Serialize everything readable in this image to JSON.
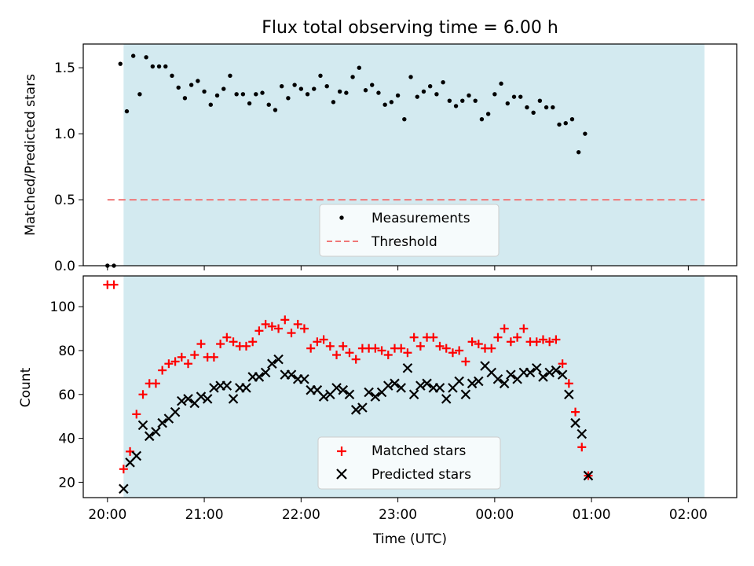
{
  "chart_data": [
    {
      "type": "scatter",
      "title": "Flux total observing time = 6.00 h",
      "xlabel": "",
      "ylabel": "Matched/Predicted stars",
      "ylim": [
        0.0,
        1.68
      ],
      "xlim": [
        "19:45",
        "02:30"
      ],
      "yticks": [
        0.0,
        0.5,
        1.0,
        1.5
      ],
      "ytick_labels": [
        "0.0",
        "0.5",
        "1.0",
        "1.5"
      ],
      "shaded_region": {
        "start": "20:10",
        "end": "02:10",
        "color": "#d3eaf0"
      },
      "threshold": {
        "value": 0.5,
        "start": "20:00",
        "end": "02:10",
        "color": "#f07878"
      },
      "legend": {
        "position": "lower-center",
        "entries": [
          "Measurements",
          "Threshold"
        ]
      },
      "series": [
        {
          "name": "Measurements",
          "color": "#000000",
          "marker": "dot",
          "points": [
            [
              "20:00",
              0.0
            ],
            [
              "20:04",
              0.0
            ],
            [
              "20:08",
              1.53
            ],
            [
              "20:12",
              1.17
            ],
            [
              "20:16",
              1.59
            ],
            [
              "20:20",
              1.3
            ],
            [
              "20:24",
              1.58
            ],
            [
              "20:28",
              1.51
            ],
            [
              "20:32",
              1.51
            ],
            [
              "20:36",
              1.51
            ],
            [
              "20:40",
              1.44
            ],
            [
              "20:44",
              1.35
            ],
            [
              "20:48",
              1.27
            ],
            [
              "20:52",
              1.37
            ],
            [
              "20:56",
              1.4
            ],
            [
              "21:00",
              1.32
            ],
            [
              "21:04",
              1.22
            ],
            [
              "21:08",
              1.29
            ],
            [
              "21:12",
              1.34
            ],
            [
              "21:16",
              1.44
            ],
            [
              "21:20",
              1.3
            ],
            [
              "21:24",
              1.3
            ],
            [
              "21:28",
              1.23
            ],
            [
              "21:32",
              1.3
            ],
            [
              "21:36",
              1.31
            ],
            [
              "21:40",
              1.22
            ],
            [
              "21:44",
              1.18
            ],
            [
              "21:48",
              1.36
            ],
            [
              "21:52",
              1.27
            ],
            [
              "21:56",
              1.37
            ],
            [
              "22:00",
              1.34
            ],
            [
              "22:04",
              1.3
            ],
            [
              "22:08",
              1.34
            ],
            [
              "22:12",
              1.44
            ],
            [
              "22:16",
              1.36
            ],
            [
              "22:20",
              1.24
            ],
            [
              "22:24",
              1.32
            ],
            [
              "22:28",
              1.31
            ],
            [
              "22:32",
              1.43
            ],
            [
              "22:36",
              1.5
            ],
            [
              "22:40",
              1.33
            ],
            [
              "22:44",
              1.37
            ],
            [
              "22:48",
              1.31
            ],
            [
              "22:52",
              1.22
            ],
            [
              "22:56",
              1.24
            ],
            [
              "23:00",
              1.29
            ],
            [
              "23:04",
              1.11
            ],
            [
              "23:08",
              1.43
            ],
            [
              "23:12",
              1.28
            ],
            [
              "23:16",
              1.32
            ],
            [
              "23:20",
              1.36
            ],
            [
              "23:24",
              1.3
            ],
            [
              "23:28",
              1.39
            ],
            [
              "23:32",
              1.25
            ],
            [
              "23:36",
              1.21
            ],
            [
              "23:40",
              1.25
            ],
            [
              "23:44",
              1.29
            ],
            [
              "23:48",
              1.25
            ],
            [
              "23:52",
              1.11
            ],
            [
              "23:56",
              1.15
            ],
            [
              "00:00",
              1.3
            ],
            [
              "00:04",
              1.38
            ],
            [
              "00:08",
              1.23
            ],
            [
              "00:12",
              1.28
            ],
            [
              "00:16",
              1.28
            ],
            [
              "00:20",
              1.2
            ],
            [
              "00:24",
              1.16
            ],
            [
              "00:28",
              1.25
            ],
            [
              "00:32",
              1.2
            ],
            [
              "00:36",
              1.2
            ],
            [
              "00:40",
              1.07
            ],
            [
              "00:44",
              1.08
            ],
            [
              "00:48",
              1.11
            ],
            [
              "00:52",
              0.86
            ],
            [
              "00:56",
              1.0
            ]
          ]
        }
      ]
    },
    {
      "type": "scatter",
      "title": "",
      "xlabel": "Time (UTC)",
      "ylabel": "Count",
      "ylim": [
        13,
        114
      ],
      "xlim": [
        "19:45",
        "02:30"
      ],
      "xtick_labels": [
        "20:00",
        "21:00",
        "22:00",
        "23:00",
        "00:00",
        "01:00",
        "02:00"
      ],
      "yticks": [
        20,
        40,
        60,
        80,
        100
      ],
      "ytick_labels": [
        "20",
        "40",
        "60",
        "80",
        "100"
      ],
      "shaded_region": {
        "start": "20:10",
        "end": "02:10",
        "color": "#d3eaf0"
      },
      "legend": {
        "position": "lower-center",
        "entries": [
          "Matched stars",
          "Predicted stars"
        ]
      },
      "series": [
        {
          "name": "Matched stars",
          "color": "#ff0000",
          "marker": "plus",
          "points": [
            [
              "20:00",
              110
            ],
            [
              "20:04",
              110
            ],
            [
              "20:10",
              26
            ],
            [
              "20:14",
              34
            ],
            [
              "20:18",
              51
            ],
            [
              "20:22",
              60
            ],
            [
              "20:26",
              65
            ],
            [
              "20:30",
              65
            ],
            [
              "20:34",
              71
            ],
            [
              "20:38",
              74
            ],
            [
              "20:42",
              75
            ],
            [
              "20:46",
              77
            ],
            [
              "20:50",
              74
            ],
            [
              "20:54",
              78
            ],
            [
              "20:58",
              83
            ],
            [
              "21:02",
              77
            ],
            [
              "21:06",
              77
            ],
            [
              "21:10",
              83
            ],
            [
              "21:14",
              86
            ],
            [
              "21:18",
              84
            ],
            [
              "21:22",
              82
            ],
            [
              "21:26",
              82
            ],
            [
              "21:30",
              84
            ],
            [
              "21:34",
              89
            ],
            [
              "21:38",
              92
            ],
            [
              "21:42",
              91
            ],
            [
              "21:46",
              90
            ],
            [
              "21:50",
              94
            ],
            [
              "21:54",
              88
            ],
            [
              "21:58",
              92
            ],
            [
              "22:02",
              90
            ],
            [
              "22:06",
              81
            ],
            [
              "22:10",
              84
            ],
            [
              "22:14",
              85
            ],
            [
              "22:18",
              82
            ],
            [
              "22:22",
              78
            ],
            [
              "22:26",
              82
            ],
            [
              "22:30",
              79
            ],
            [
              "22:34",
              76
            ],
            [
              "22:38",
              81
            ],
            [
              "22:42",
              81
            ],
            [
              "22:46",
              81
            ],
            [
              "22:50",
              80
            ],
            [
              "22:54",
              78
            ],
            [
              "22:58",
              81
            ],
            [
              "23:02",
              81
            ],
            [
              "23:06",
              79
            ],
            [
              "23:10",
              86
            ],
            [
              "23:14",
              82
            ],
            [
              "23:18",
              86
            ],
            [
              "23:22",
              86
            ],
            [
              "23:26",
              82
            ],
            [
              "23:30",
              81
            ],
            [
              "23:34",
              79
            ],
            [
              "23:38",
              80
            ],
            [
              "23:42",
              75
            ],
            [
              "23:46",
              84
            ],
            [
              "23:50",
              83
            ],
            [
              "23:54",
              81
            ],
            [
              "23:58",
              81
            ],
            [
              "00:02",
              86
            ],
            [
              "00:06",
              90
            ],
            [
              "00:10",
              84
            ],
            [
              "00:14",
              86
            ],
            [
              "00:18",
              90
            ],
            [
              "00:22",
              84
            ],
            [
              "00:26",
              84
            ],
            [
              "00:30",
              85
            ],
            [
              "00:34",
              84
            ],
            [
              "00:38",
              85
            ],
            [
              "00:42",
              74
            ],
            [
              "00:46",
              65
            ],
            [
              "00:50",
              52
            ],
            [
              "00:54",
              36
            ],
            [
              "00:58",
              23
            ]
          ]
        },
        {
          "name": "Predicted stars",
          "color": "#000000",
          "marker": "x",
          "points": [
            [
              "20:10",
              17
            ],
            [
              "20:14",
              29
            ],
            [
              "20:18",
              32
            ],
            [
              "20:22",
              46
            ],
            [
              "20:26",
              41
            ],
            [
              "20:30",
              43
            ],
            [
              "20:34",
              47
            ],
            [
              "20:38",
              49
            ],
            [
              "20:42",
              52
            ],
            [
              "20:46",
              57
            ],
            [
              "20:50",
              58
            ],
            [
              "20:54",
              56
            ],
            [
              "20:58",
              59
            ],
            [
              "21:02",
              58
            ],
            [
              "21:06",
              63
            ],
            [
              "21:10",
              64
            ],
            [
              "21:14",
              64
            ],
            [
              "21:18",
              58
            ],
            [
              "21:22",
              63
            ],
            [
              "21:26",
              63
            ],
            [
              "21:30",
              68
            ],
            [
              "21:34",
              68
            ],
            [
              "21:38",
              70
            ],
            [
              "21:42",
              74
            ],
            [
              "21:46",
              76
            ],
            [
              "21:50",
              69
            ],
            [
              "21:54",
              69
            ],
            [
              "21:58",
              67
            ],
            [
              "22:02",
              67
            ],
            [
              "22:06",
              62
            ],
            [
              "22:10",
              62
            ],
            [
              "22:14",
              59
            ],
            [
              "22:18",
              60
            ],
            [
              "22:22",
              63
            ],
            [
              "22:26",
              62
            ],
            [
              "22:30",
              60
            ],
            [
              "22:34",
              53
            ],
            [
              "22:38",
              54
            ],
            [
              "22:42",
              61
            ],
            [
              "22:46",
              59
            ],
            [
              "22:50",
              61
            ],
            [
              "22:54",
              64
            ],
            [
              "22:58",
              65
            ],
            [
              "23:02",
              63
            ],
            [
              "23:06",
              72
            ],
            [
              "23:10",
              60
            ],
            [
              "23:14",
              64
            ],
            [
              "23:18",
              65
            ],
            [
              "23:22",
              63
            ],
            [
              "23:26",
              63
            ],
            [
              "23:30",
              58
            ],
            [
              "23:34",
              63
            ],
            [
              "23:38",
              66
            ],
            [
              "23:42",
              60
            ],
            [
              "23:46",
              65
            ],
            [
              "23:50",
              66
            ],
            [
              "23:54",
              73
            ],
            [
              "23:58",
              70
            ],
            [
              "00:02",
              67
            ],
            [
              "00:06",
              65
            ],
            [
              "00:10",
              69
            ],
            [
              "00:14",
              67
            ],
            [
              "00:18",
              70
            ],
            [
              "00:22",
              70
            ],
            [
              "00:26",
              72
            ],
            [
              "00:30",
              68
            ],
            [
              "00:34",
              70
            ],
            [
              "00:38",
              71
            ],
            [
              "00:42",
              69
            ],
            [
              "00:46",
              60
            ],
            [
              "00:50",
              47
            ],
            [
              "00:54",
              42
            ],
            [
              "00:58",
              23
            ]
          ]
        }
      ]
    }
  ]
}
